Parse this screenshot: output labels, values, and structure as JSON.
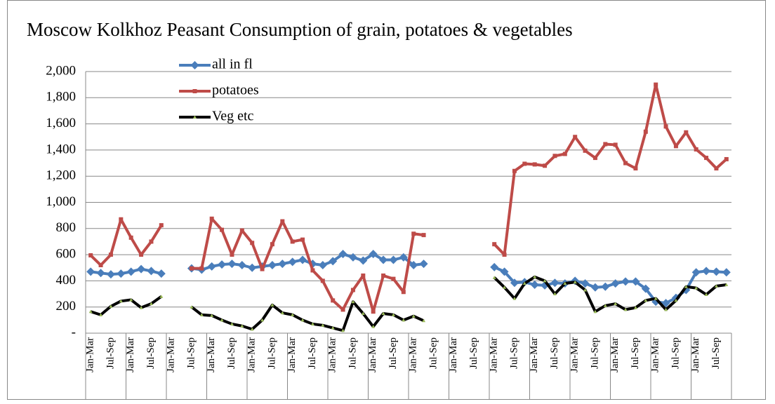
{
  "chart_data": {
    "type": "line",
    "title": "Moscow Kolkhoz Peasant Consumption of grain, potatoes & vegetables",
    "categories": [
      "Jan-Mar",
      null,
      "Jul-Sep",
      null,
      "Jan-Mar",
      null,
      "Jul-Sep",
      null,
      "Jan-Mar",
      null,
      "Jul-Sep",
      null,
      "Jan-Mar",
      null,
      "Jul-Sep",
      null,
      "Jan-Mar",
      null,
      "Jul-Sep",
      null,
      "Jan-Mar",
      null,
      "Jul-Sep",
      null,
      "Jan-Mar",
      null,
      "Jul-Sep",
      null,
      "Jan-Mar",
      null,
      "Jul-Sep",
      null,
      "Jan-Mar",
      null,
      "Jul-Sep",
      null,
      "Jan-Mar",
      null,
      "Jul-Sep",
      null,
      "Jan-Mar",
      null,
      "Jul-Sep",
      null,
      "Jan-Mar",
      null,
      "Jul-Sep",
      null,
      "Jan-Mar",
      null,
      "Jul-Sep",
      null,
      "Jan-Mar",
      null,
      "Jul-Sep",
      null,
      "Jan-Mar",
      null,
      "Jul-Sep",
      null,
      "Jan-Mar",
      null,
      "Jul-Sep",
      null
    ],
    "series": [
      {
        "name": "all in fl",
        "color": "#4a7ebb",
        "marker": "diamond",
        "values": [
          470,
          460,
          450,
          455,
          470,
          490,
          475,
          455,
          null,
          null,
          495,
          485,
          510,
          525,
          530,
          520,
          500,
          510,
          520,
          530,
          545,
          560,
          530,
          520,
          550,
          605,
          580,
          555,
          605,
          560,
          560,
          580,
          520,
          530,
          null,
          null,
          null,
          null,
          null,
          null,
          505,
          470,
          385,
          390,
          370,
          365,
          385,
          380,
          400,
          380,
          350,
          355,
          380,
          395,
          395,
          340,
          240,
          230,
          270,
          330,
          465,
          475,
          470,
          465
        ]
      },
      {
        "name": "potatoes",
        "color": "#be4b48",
        "marker": "square",
        "values": [
          595,
          520,
          600,
          870,
          730,
          600,
          700,
          825,
          null,
          null,
          495,
          495,
          875,
          790,
          600,
          785,
          690,
          490,
          680,
          855,
          700,
          715,
          480,
          400,
          250,
          180,
          330,
          440,
          165,
          440,
          415,
          315,
          760,
          750,
          null,
          null,
          null,
          null,
          null,
          null,
          680,
          600,
          1240,
          1295,
          1290,
          1280,
          1355,
          1370,
          1500,
          1395,
          1340,
          1445,
          1440,
          1300,
          1260,
          1540,
          1900,
          1580,
          1430,
          1535,
          1405,
          1340,
          1260,
          1330
        ]
      },
      {
        "name": "Veg etc",
        "color": "#000000",
        "marker": "triangle",
        "values": [
          165,
          140,
          205,
          245,
          255,
          195,
          225,
          280,
          null,
          null,
          200,
          140,
          135,
          100,
          70,
          55,
          30,
          100,
          215,
          155,
          140,
          100,
          70,
          60,
          40,
          20,
          240,
          150,
          50,
          150,
          140,
          100,
          130,
          95,
          null,
          null,
          null,
          null,
          null,
          null,
          425,
          350,
          265,
          380,
          430,
          400,
          300,
          380,
          390,
          330,
          165,
          210,
          225,
          180,
          195,
          250,
          265,
          180,
          250,
          355,
          345,
          295,
          360,
          370
        ]
      }
    ],
    "ylim": [
      0,
      2000
    ],
    "yticks": [
      {
        "value": 0,
        "label": "-"
      },
      200,
      400,
      600,
      800,
      {
        "value": 1000,
        "label": "1,000"
      },
      {
        "value": 1200,
        "label": "1,200"
      },
      {
        "value": 1400,
        "label": "1,400"
      },
      {
        "value": 1600,
        "label": "1,600"
      },
      {
        "value": 1800,
        "label": "1,800"
      },
      {
        "value": 2000,
        "label": "2,000"
      }
    ],
    "grid": true,
    "legend": "top-left"
  }
}
